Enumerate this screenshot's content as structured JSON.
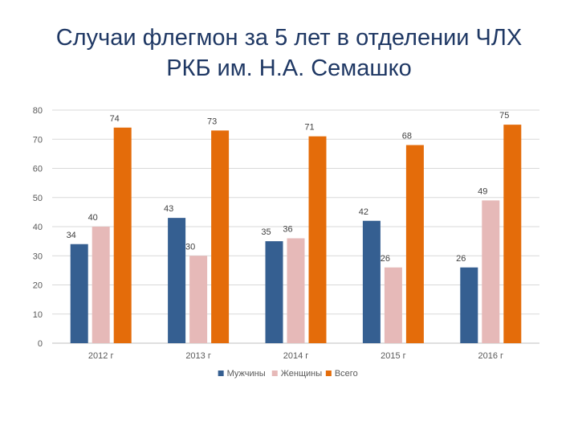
{
  "title_line1": "Случаи флегмон за 5 лет в отделении ЧЛХ",
  "title_line2": "РКБ им. Н.А. Семашко",
  "chart_data": {
    "type": "bar",
    "categories": [
      "2012 г",
      "2013 г",
      "2014 г",
      "2015 г",
      "2016 г"
    ],
    "series": [
      {
        "name": "Мужчины",
        "values": [
          34,
          43,
          35,
          42,
          26
        ],
        "color": "#355f91"
      },
      {
        "name": "Женщины",
        "values": [
          40,
          30,
          36,
          26,
          49
        ],
        "color": "#e6b9b8"
      },
      {
        "name": "Всего",
        "values": [
          74,
          73,
          71,
          68,
          75
        ],
        "color": "#e46c0a"
      }
    ],
    "ylim": [
      0,
      80
    ],
    "yticks": [
      0,
      10,
      20,
      30,
      40,
      50,
      60,
      70,
      80
    ],
    "grid": true,
    "legend": "bottom"
  }
}
